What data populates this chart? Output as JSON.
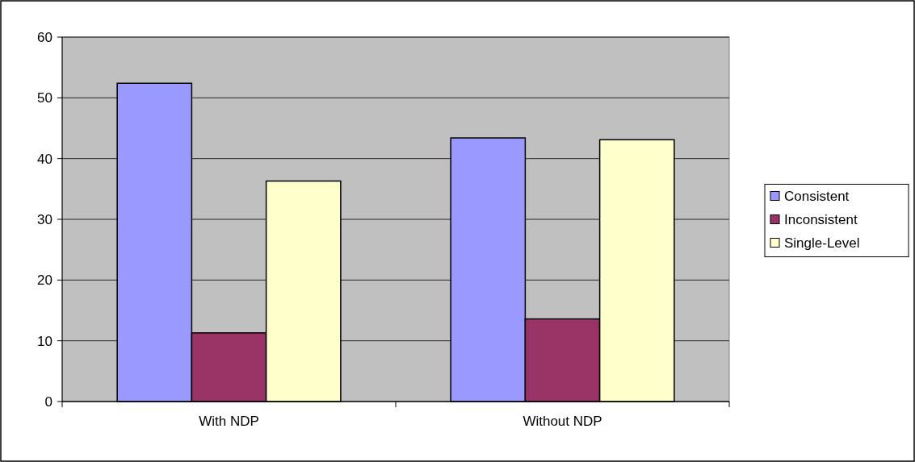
{
  "chart_data": {
    "type": "bar",
    "categories": [
      "With NDP",
      "Without NDP"
    ],
    "series": [
      {
        "name": "Consistent",
        "color": "#9999ff",
        "values": [
          52.4,
          43.4
        ]
      },
      {
        "name": "Inconsistent",
        "color": "#993366",
        "values": [
          11.3,
          13.6
        ]
      },
      {
        "name": "Single-Level",
        "color": "#ffffcc",
        "values": [
          36.3,
          43.1
        ]
      }
    ],
    "ylim": [
      0,
      60
    ],
    "yticks": [
      0,
      10,
      20,
      30,
      40,
      50,
      60
    ],
    "grid": "y",
    "legend": "right"
  }
}
